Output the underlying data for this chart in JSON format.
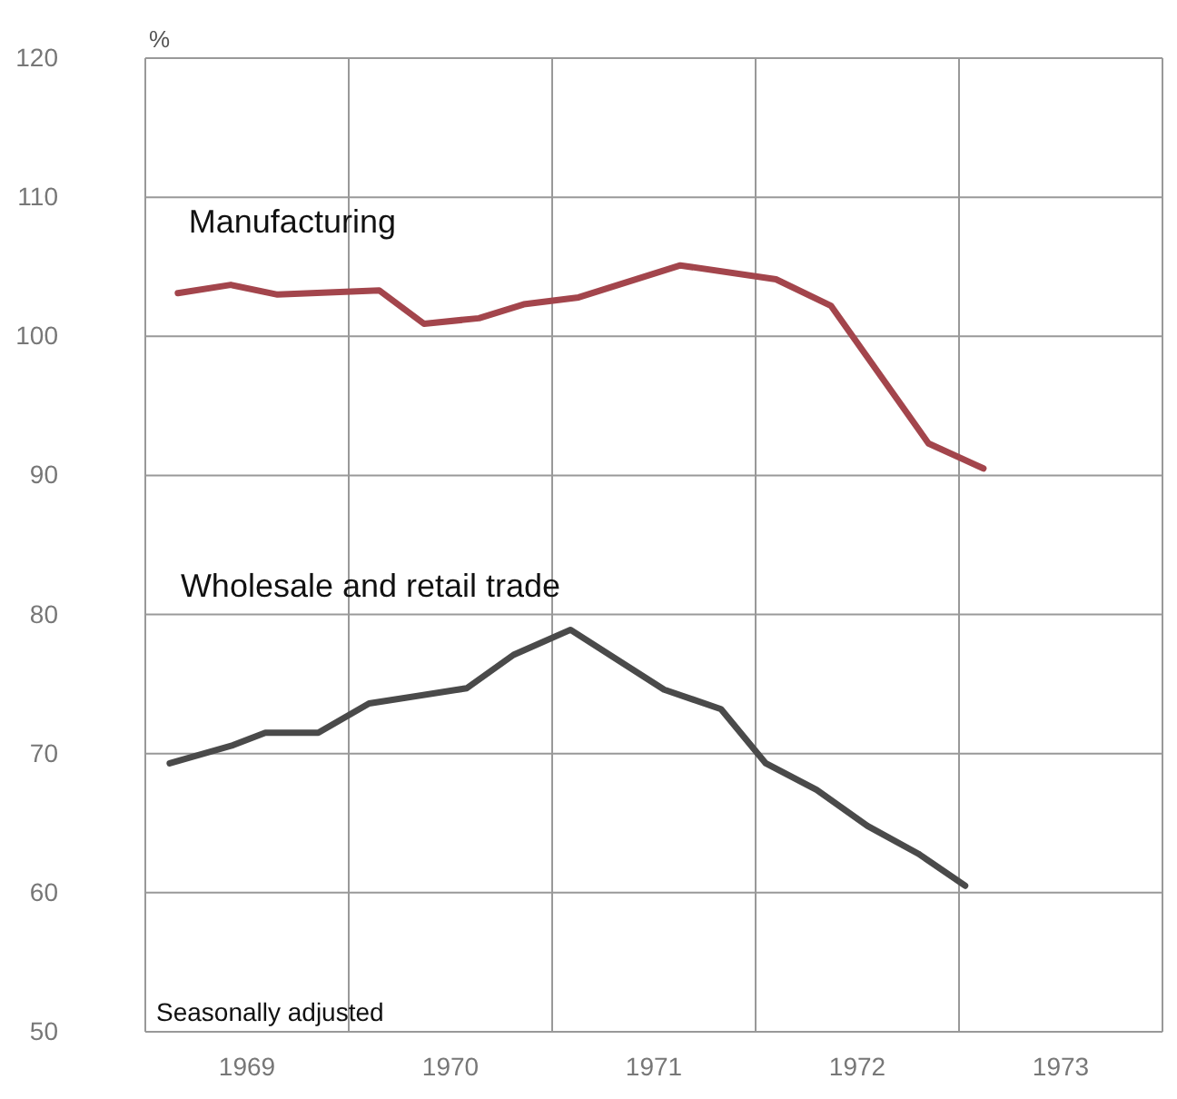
{
  "chart_data": {
    "type": "line",
    "ylabel": "%",
    "annotations": [
      "Seasonally adjusted"
    ],
    "xlim": [
      1969,
      1974
    ],
    "xticks": [
      {
        "value": 1969,
        "label": null
      },
      {
        "value": 1969.5,
        "label": "1969"
      },
      {
        "value": 1970,
        "label": null
      },
      {
        "value": 1970.5,
        "label": "1970"
      },
      {
        "value": 1971,
        "label": null
      },
      {
        "value": 1971.5,
        "label": "1971"
      },
      {
        "value": 1972,
        "label": null
      },
      {
        "value": 1972.5,
        "label": "1972"
      },
      {
        "value": 1973,
        "label": null
      },
      {
        "value": 1973.5,
        "label": "1973"
      },
      {
        "value": 1974,
        "label": null
      }
    ],
    "ylim": [
      50,
      120
    ],
    "yticks": [
      50,
      60,
      70,
      80,
      90,
      100,
      110,
      120
    ],
    "grid": true,
    "line_style": "solid",
    "series": [
      {
        "name": "Manufacturing",
        "color": "#a3454c",
        "x": [
          1969.16,
          1969.42,
          1969.65,
          1970.15,
          1970.37,
          1970.64,
          1970.86,
          1971.13,
          1971.63,
          1972.1,
          1972.37,
          1972.85,
          1973.12
        ],
        "values": [
          103.1,
          103.7,
          103.0,
          103.3,
          100.9,
          101.3,
          102.3,
          102.8,
          105.1,
          104.1,
          102.2,
          92.3,
          90.5
        ]
      },
      {
        "name": "Wholesale and retail trade",
        "color": "#4a4a4a",
        "x": [
          1969.12,
          1969.43,
          1969.59,
          1969.85,
          1970.1,
          1970.58,
          1970.81,
          1971.09,
          1971.55,
          1971.83,
          1972.05,
          1972.3,
          1972.55,
          1972.8,
          1973.03
        ],
        "values": [
          69.3,
          70.6,
          71.5,
          71.5,
          73.6,
          74.7,
          77.1,
          78.9,
          74.6,
          73.2,
          69.3,
          67.4,
          64.8,
          62.8,
          60.5
        ]
      }
    ]
  }
}
